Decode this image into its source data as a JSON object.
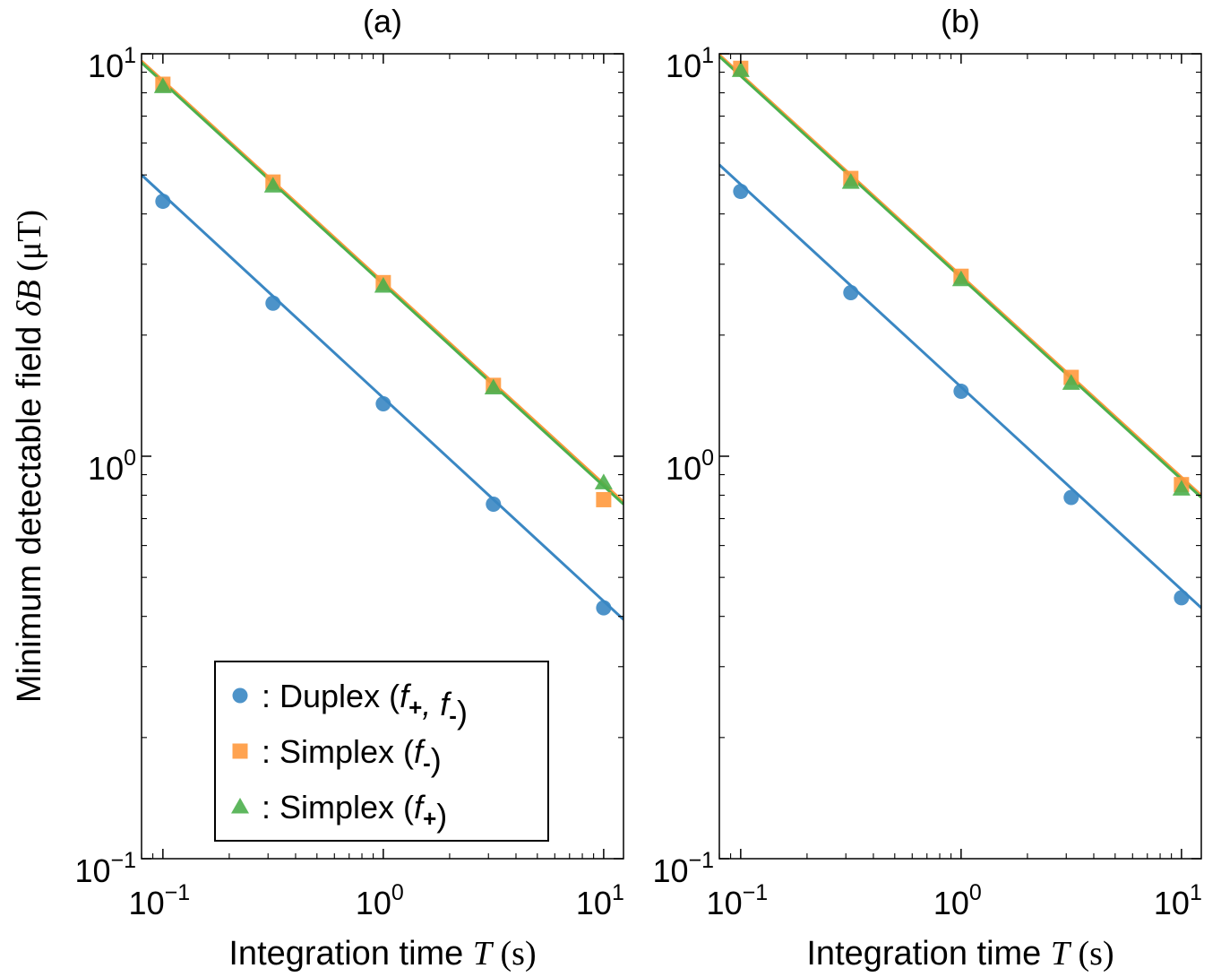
{
  "chart_data": [
    {
      "type": "scatter",
      "title": "(a)",
      "xlabel_prefix": "Integration time ",
      "xlabel_var": "T",
      "xlabel_unit": " (s)",
      "ylabel_prefix": "Minimum detectable field ",
      "ylabel_var": "δB",
      "ylabel_unit": " (μT)",
      "xscale": "log",
      "yscale": "log",
      "xlim": [
        0.08,
        12.3
      ],
      "ylim": [
        0.1,
        10
      ],
      "xticks": [
        {
          "base": "10",
          "exp": "−1",
          "value": 0.1
        },
        {
          "base": "10",
          "exp": "0",
          "value": 1
        },
        {
          "base": "10",
          "exp": "1",
          "value": 10
        }
      ],
      "yticks": [
        {
          "base": "10",
          "exp": "−1",
          "value": 0.1
        },
        {
          "base": "10",
          "exp": "0",
          "value": 1
        },
        {
          "base": "10",
          "exp": "1",
          "value": 10
        }
      ],
      "x": [
        0.1,
        0.316,
        1,
        3.16,
        10
      ],
      "series": [
        {
          "name": "Duplex",
          "marker": "circle",
          "color": "#1f77b4",
          "values": [
            4.3,
            2.4,
            1.35,
            0.76,
            0.42
          ],
          "fit": [
            5.0,
            0.393
          ]
        },
        {
          "name": "Simplex (f−)",
          "marker": "square",
          "color": "#ff7f0e",
          "values": [
            8.4,
            4.8,
            2.7,
            1.5,
            0.78
          ],
          "fit": [
            9.6,
            0.77
          ]
        },
        {
          "name": "Simplex (f+)",
          "marker": "triangle",
          "color": "#2ca02c",
          "values": [
            8.3,
            4.7,
            2.65,
            1.48,
            0.86
          ],
          "fit": [
            9.5,
            0.76
          ]
        }
      ],
      "legend": "lower-center"
    },
    {
      "type": "scatter",
      "title": "(b)",
      "xlabel_prefix": "Integration time ",
      "xlabel_var": "T",
      "xlabel_unit": " (s)",
      "xscale": "log",
      "yscale": "log",
      "xlim": [
        0.08,
        12.3
      ],
      "ylim": [
        0.1,
        10
      ],
      "xticks": [
        {
          "base": "10",
          "exp": "−1",
          "value": 0.1
        },
        {
          "base": "10",
          "exp": "0",
          "value": 1
        },
        {
          "base": "10",
          "exp": "1",
          "value": 10
        }
      ],
      "yticks": [
        {
          "base": "10",
          "exp": "−1",
          "value": 0.1
        },
        {
          "base": "10",
          "exp": "0",
          "value": 1
        },
        {
          "base": "10",
          "exp": "1",
          "value": 10
        }
      ],
      "x": [
        0.1,
        0.316,
        1,
        3.16,
        10
      ],
      "series": [
        {
          "name": "Duplex",
          "marker": "circle",
          "color": "#1f77b4",
          "values": [
            4.55,
            2.55,
            1.45,
            0.79,
            0.445
          ],
          "fit": [
            5.3,
            0.42
          ]
        },
        {
          "name": "Simplex (f−)",
          "marker": "square",
          "color": "#ff7f0e",
          "values": [
            9.2,
            4.9,
            2.8,
            1.57,
            0.85
          ],
          "fit": [
            9.95,
            0.8
          ]
        },
        {
          "name": "Simplex (f+)",
          "marker": "triangle",
          "color": "#2ca02c",
          "values": [
            9.1,
            4.8,
            2.75,
            1.52,
            0.83
          ],
          "fit": [
            9.85,
            0.79
          ]
        }
      ]
    }
  ],
  "legend": {
    "items": [
      {
        "marker": "circle",
        "color": "#1f77b4",
        "text": ": Duplex (",
        "vars": [
          {
            "v": "f",
            "sub": "+"
          },
          {
            "sep": ", "
          },
          {
            "v": "f",
            "sub": "-"
          }
        ],
        "close": ")"
      },
      {
        "marker": "square",
        "color": "#ff7f0e",
        "text": ": Simplex (",
        "vars": [
          {
            "v": "f",
            "sub": "-"
          }
        ],
        "close": ")"
      },
      {
        "marker": "triangle",
        "color": "#2ca02c",
        "text": ": Simplex (",
        "vars": [
          {
            "v": "f",
            "sub": "+"
          }
        ],
        "close": ")"
      }
    ]
  }
}
